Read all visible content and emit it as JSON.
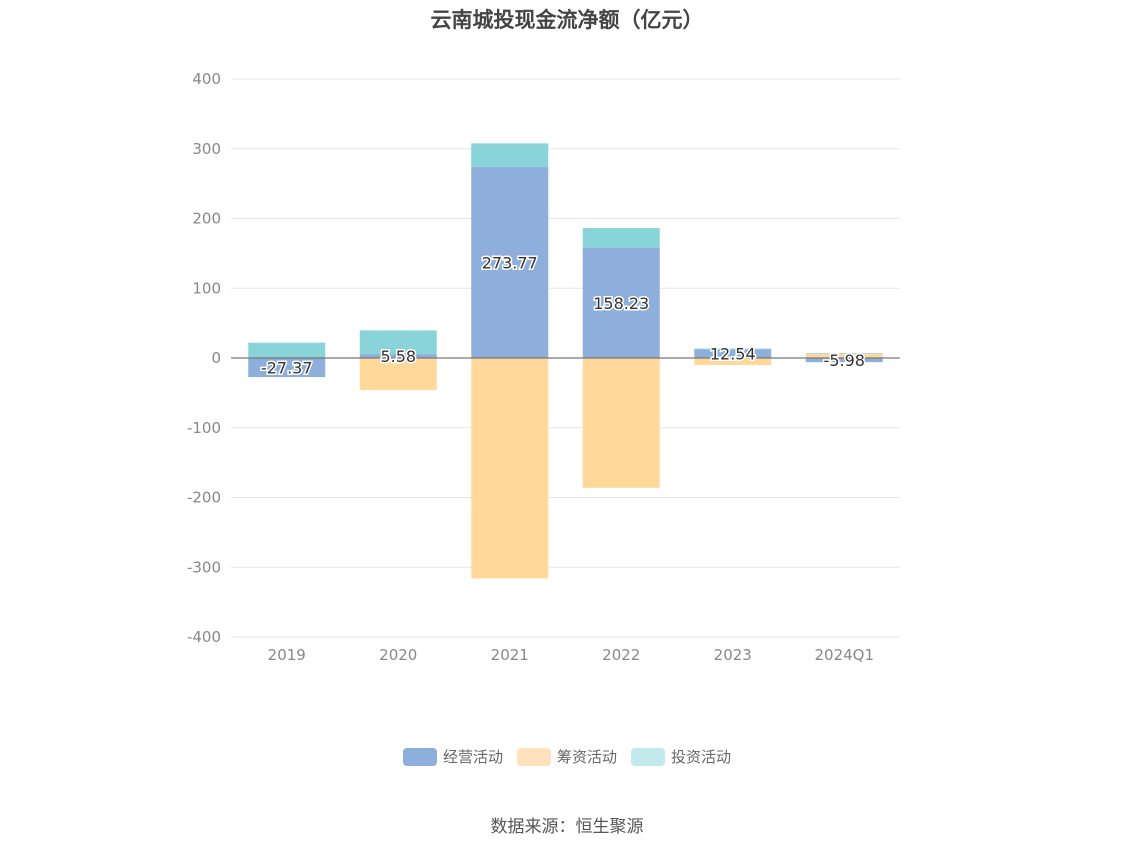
{
  "chart_data": {
    "type": "bar",
    "stacked": true,
    "title": "云南城投现金流净额（亿元）",
    "categories": [
      "2019",
      "2020",
      "2021",
      "2022",
      "2023",
      "2024Q1"
    ],
    "series": [
      {
        "name": "经营活动",
        "color": "#8eaedc",
        "values": [
          -27.37,
          5.58,
          273.77,
          158.23,
          12.54,
          -5.98
        ],
        "labels": [
          "-27.37",
          "5.58",
          "273.77",
          "158.23",
          "12.54",
          "-5.98"
        ]
      },
      {
        "name": "筹资活动",
        "color": "#ffd89a",
        "values": [
          0,
          -46,
          -316,
          -186,
          -10,
          6
        ]
      },
      {
        "name": "投资活动",
        "color": "#88d4d8",
        "values": [
          22,
          34,
          34,
          28,
          1,
          1
        ]
      }
    ],
    "ylim": [
      -400,
      400
    ],
    "yticks": [
      400,
      300,
      200,
      100,
      0,
      -100,
      -200,
      -300,
      -400
    ],
    "grid": true,
    "legend_position": "bottom"
  },
  "legend": {
    "items": [
      {
        "label": "经营活动",
        "color": "#8eaedc"
      },
      {
        "label": "筹资活动",
        "color": "#fde2bd"
      },
      {
        "label": "投资活动",
        "color": "#c2eaec"
      }
    ]
  },
  "source": "数据来源：恒生聚源"
}
